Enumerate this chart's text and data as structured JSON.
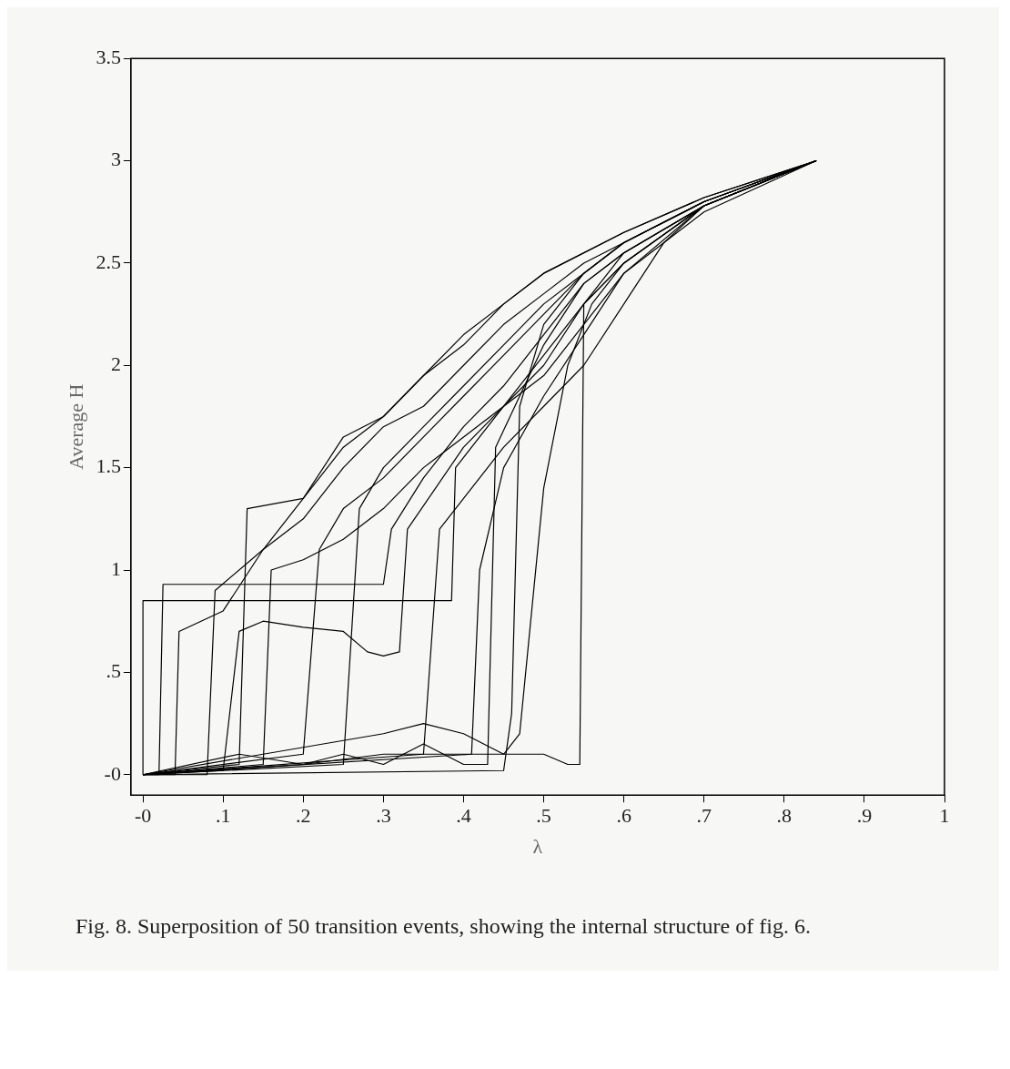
{
  "chart_data": {
    "type": "line",
    "xlabel": "λ",
    "ylabel": "Average H",
    "xlim": [
      -0.015,
      1
    ],
    "ylim": [
      -0.1,
      3.5
    ],
    "xticks": [
      {
        "value": 0,
        "label": "-0"
      },
      {
        "value": 0.1,
        "label": ".1"
      },
      {
        "value": 0.2,
        "label": ".2"
      },
      {
        "value": 0.3,
        "label": ".3"
      },
      {
        "value": 0.4,
        "label": ".4"
      },
      {
        "value": 0.5,
        "label": ".5"
      },
      {
        "value": 0.6,
        "label": ".6"
      },
      {
        "value": 0.7,
        "label": ".7"
      },
      {
        "value": 0.8,
        "label": ".8"
      },
      {
        "value": 0.9,
        "label": ".9"
      },
      1
    ],
    "yticks": [
      {
        "value": 0,
        "label": "-0"
      },
      {
        "value": 0.5,
        "label": ".5"
      },
      1,
      1.5,
      2,
      2.5,
      3,
      3.5
    ],
    "grid": false,
    "legend": false,
    "marker": "none",
    "line_style": "solid",
    "annotations": [
      "Fig. 8. Superposition of 50 transition events, showing the internal structure of fig. 6."
    ],
    "series": [
      {
        "color": "#000000",
        "x": [
          0,
          0,
          0.385,
          0.39,
          0.45,
          0.5,
          0.55,
          0.6,
          0.7,
          0.84
        ],
        "values": [
          0,
          0.85,
          0.85,
          1.5,
          1.8,
          2.05,
          2.3,
          2.5,
          2.78,
          3.0
        ]
      },
      {
        "color": "#000000",
        "x": [
          0,
          0.04,
          0.045,
          0.1,
          0.15,
          0.2,
          0.25,
          0.3,
          0.35,
          0.4,
          0.45,
          0.5,
          0.55,
          0.6,
          0.7,
          0.84
        ],
        "values": [
          0,
          0,
          0.7,
          0.8,
          1.1,
          1.25,
          1.5,
          1.7,
          1.8,
          2.0,
          2.2,
          2.35,
          2.5,
          2.6,
          2.8,
          3.0
        ]
      },
      {
        "color": "#000000",
        "x": [
          0,
          0.1,
          0.12,
          0.15,
          0.2,
          0.25,
          0.28,
          0.3,
          0.32,
          0.33,
          0.4,
          0.5,
          0.55,
          0.6,
          0.7,
          0.84
        ],
        "values": [
          0,
          0.02,
          0.7,
          0.75,
          0.72,
          0.7,
          0.6,
          0.58,
          0.6,
          1.2,
          1.6,
          2.0,
          2.3,
          2.5,
          2.78,
          3.0
        ]
      },
      {
        "color": "#000000",
        "x": [
          0,
          0.2,
          0.3,
          0.4,
          0.5,
          0.53,
          0.545,
          0.55,
          0.6,
          0.7,
          0.84
        ],
        "values": [
          0,
          0.05,
          0.1,
          0.1,
          0.1,
          0.05,
          0.05,
          2.3,
          2.55,
          2.78,
          3.0
        ]
      },
      {
        "color": "#000000",
        "x": [
          0,
          0.3,
          0.35,
          0.4,
          0.45,
          0.47,
          0.5,
          0.53,
          0.56,
          0.6,
          0.7,
          0.84
        ],
        "values": [
          0,
          0.2,
          0.25,
          0.2,
          0.1,
          0.2,
          1.4,
          2.0,
          2.3,
          2.5,
          2.78,
          3.0
        ]
      },
      {
        "color": "#000000",
        "x": [
          0,
          0.12,
          0.2,
          0.25,
          0.3,
          0.35,
          0.4,
          0.43,
          0.44,
          0.5,
          0.55,
          0.6,
          0.7,
          0.84
        ],
        "values": [
          0,
          0.1,
          0.05,
          0.1,
          0.05,
          0.15,
          0.05,
          0.05,
          1.6,
          2.1,
          2.4,
          2.55,
          2.78,
          3.0
        ]
      },
      {
        "color": "#000000",
        "x": [
          0,
          0.08,
          0.09,
          0.15,
          0.2,
          0.25,
          0.3,
          0.35,
          0.4,
          0.45,
          0.5,
          0.6,
          0.7,
          0.84
        ],
        "values": [
          0,
          0,
          0.9,
          1.1,
          1.35,
          1.6,
          1.75,
          1.95,
          2.15,
          2.3,
          2.45,
          2.65,
          2.82,
          3.0
        ]
      },
      {
        "color": "#000000",
        "x": [
          0,
          0.15,
          0.16,
          0.2,
          0.25,
          0.3,
          0.35,
          0.4,
          0.45,
          0.5,
          0.55,
          0.6,
          0.7,
          0.84
        ],
        "values": [
          0,
          0.05,
          1.0,
          1.05,
          1.15,
          1.3,
          1.5,
          1.65,
          1.8,
          1.95,
          2.2,
          2.45,
          2.75,
          3.0
        ]
      },
      {
        "color": "#000000",
        "x": [
          0,
          0.02,
          0.025,
          0.3,
          0.31,
          0.35,
          0.4,
          0.45,
          0.5,
          0.55,
          0.6,
          0.7,
          0.84
        ],
        "values": [
          0,
          0,
          0.93,
          0.93,
          1.2,
          1.45,
          1.7,
          1.9,
          2.15,
          2.4,
          2.55,
          2.78,
          3.0
        ]
      },
      {
        "color": "#000000",
        "x": [
          0,
          0.25,
          0.27,
          0.3,
          0.35,
          0.4,
          0.45,
          0.5,
          0.55,
          0.6,
          0.7,
          0.84
        ],
        "values": [
          0,
          0.05,
          1.3,
          1.5,
          1.7,
          1.9,
          2.1,
          2.3,
          2.45,
          2.6,
          2.8,
          3.0
        ]
      },
      {
        "color": "#000000",
        "x": [
          0,
          0.35,
          0.37,
          0.4,
          0.45,
          0.5,
          0.55,
          0.6,
          0.65,
          0.7,
          0.84
        ],
        "values": [
          0,
          0.1,
          1.2,
          1.35,
          1.6,
          1.8,
          2.0,
          2.3,
          2.6,
          2.78,
          3.0
        ]
      },
      {
        "color": "#000000",
        "x": [
          0,
          0.2,
          0.22,
          0.25,
          0.3,
          0.35,
          0.4,
          0.45,
          0.5,
          0.55,
          0.6,
          0.7,
          0.84
        ],
        "values": [
          0,
          0.1,
          1.1,
          1.3,
          1.45,
          1.65,
          1.85,
          2.05,
          2.25,
          2.45,
          2.6,
          2.8,
          3.0
        ]
      },
      {
        "color": "#000000",
        "x": [
          0,
          0.12,
          0.13,
          0.2,
          0.25,
          0.3,
          0.35,
          0.4,
          0.45,
          0.5,
          0.6,
          0.7,
          0.84
        ],
        "values": [
          0,
          0.05,
          1.3,
          1.35,
          1.65,
          1.75,
          1.95,
          2.1,
          2.3,
          2.45,
          2.65,
          2.82,
          3.0
        ]
      },
      {
        "color": "#000000",
        "x": [
          0,
          0.41,
          0.42,
          0.45,
          0.5,
          0.55,
          0.6,
          0.7,
          0.84
        ],
        "values": [
          0,
          0.1,
          1.0,
          1.5,
          1.85,
          2.15,
          2.45,
          2.78,
          3.0
        ]
      },
      {
        "color": "#000000",
        "x": [
          0,
          0.45,
          0.46,
          0.47,
          0.5,
          0.55,
          0.6,
          0.7,
          0.84
        ],
        "values": [
          0,
          0.02,
          0.3,
          1.8,
          2.2,
          2.45,
          2.6,
          2.8,
          3.0
        ]
      }
    ]
  }
}
